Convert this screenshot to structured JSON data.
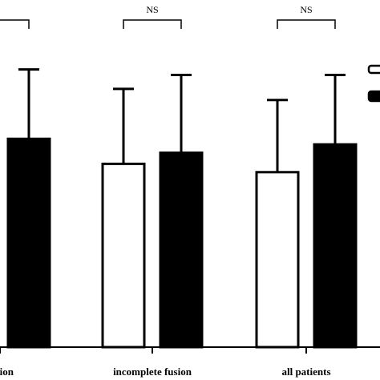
{
  "chart_data": {
    "type": "bar",
    "categories": [
      "fusion",
      "incomplete fusion",
      "all patients"
    ],
    "series": [
      {
        "color": "#ffffff",
        "values": [
          null,
          0.66,
          0.63
        ],
        "errors": [
          null,
          0.27,
          0.26
        ]
      },
      {
        "color": "#000000",
        "values": [
          0.75,
          0.7,
          0.73
        ],
        "errors": [
          0.25,
          0.28,
          0.25
        ]
      }
    ],
    "significance": [
      {
        "category_index": 0,
        "label": ""
      },
      {
        "category_index": 1,
        "label": "NS"
      },
      {
        "category_index": 2,
        "label": "NS"
      }
    ],
    "ylim": [
      0,
      1.25
    ],
    "xlabel": "",
    "ylabel": "",
    "title": ""
  }
}
